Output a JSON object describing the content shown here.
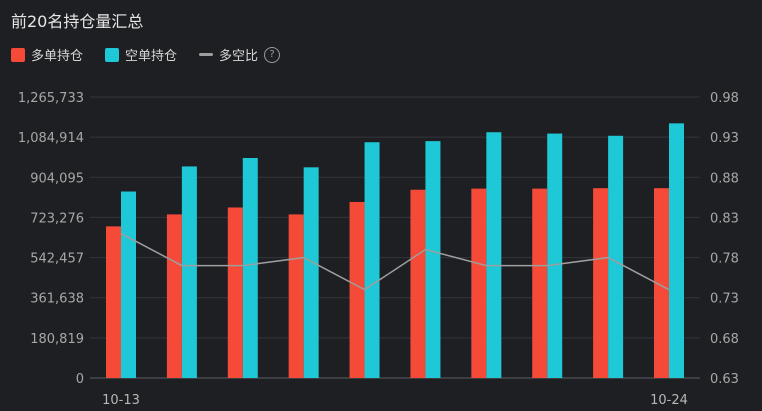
{
  "title": "前20名持仓量汇总",
  "legend": {
    "long_label": "多单持仓",
    "short_label": "空单持仓",
    "ratio_label": "多空比",
    "help_icon": "question-circle-icon"
  },
  "colors": {
    "long": "#f44a37",
    "short": "#1ec8d6",
    "ratio": "#9e9e9e",
    "grid": "#34363b"
  },
  "chart_data": {
    "type": "bar",
    "categories": [
      "10-13",
      "",
      "",
      "",
      "",
      "",
      "",
      "",
      "",
      "10-24"
    ],
    "series": [
      {
        "name": "多单持仓",
        "values": [
          683000,
          737000,
          768000,
          737000,
          793000,
          848000,
          853000,
          853000,
          855000,
          855000
        ]
      },
      {
        "name": "空单持仓",
        "values": [
          840000,
          953000,
          991000,
          949000,
          1062000,
          1067000,
          1107000,
          1101000,
          1091000,
          1147000
        ]
      }
    ],
    "line_series": {
      "name": "多空比",
      "values": [
        0.81,
        0.77,
        0.77,
        0.78,
        0.74,
        0.79,
        0.77,
        0.77,
        0.78,
        0.74
      ]
    },
    "y_left_ticks": [
      "0",
      "180,819",
      "361,638",
      "542,457",
      "723,276",
      "904,095",
      "1,084,914",
      "1,265,733"
    ],
    "y_left_range": [
      0,
      1265733
    ],
    "y_right_ticks": [
      "0.63",
      "0.68",
      "0.73",
      "0.78",
      "0.83",
      "0.88",
      "0.93",
      "0.98"
    ],
    "y_right_range": [
      0.63,
      0.98
    ],
    "x_tick_labels": [
      "10-13",
      "10-24"
    ],
    "grid": true,
    "legend_position": "top-left"
  }
}
